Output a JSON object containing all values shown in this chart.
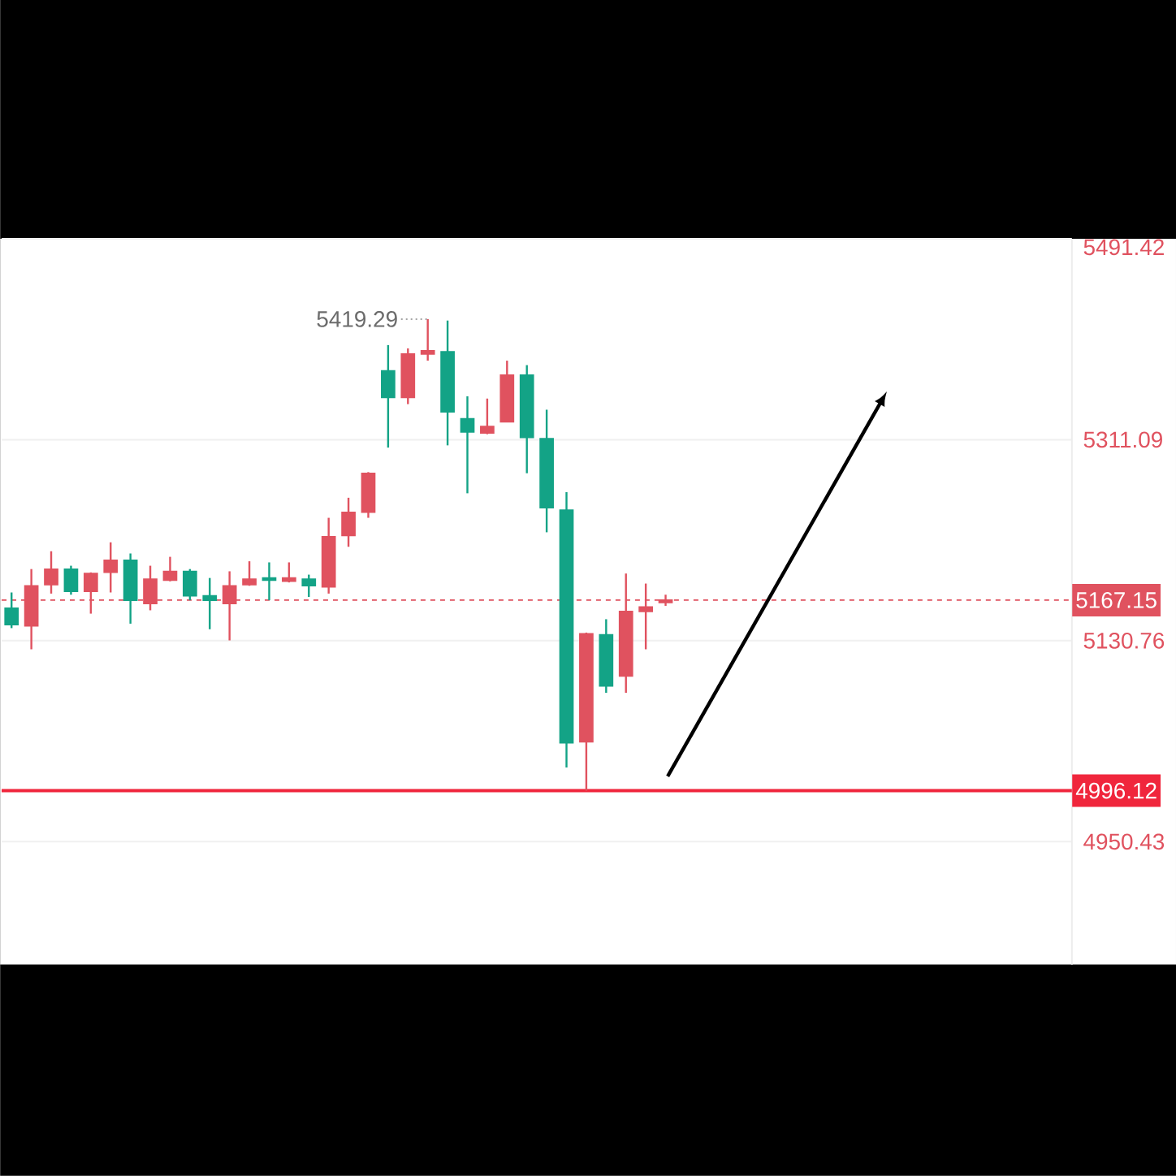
{
  "chart_data": {
    "type": "candlestick",
    "categories": [
      null,
      null,
      null,
      null,
      null,
      null,
      null,
      null,
      null,
      null,
      null,
      null,
      null,
      null,
      null,
      null,
      null,
      null,
      null,
      null,
      null,
      null,
      null,
      null,
      null,
      null,
      null,
      null,
      null,
      null,
      null,
      null,
      null,
      null,
      null,
      null,
      null,
      null,
      null,
      null,
      null,
      null,
      null,
      null,
      null,
      null,
      null,
      null,
      null,
      null,
      null,
      null,
      null,
      null
    ],
    "ohlc": [
      [
        5160,
        5174,
        5142,
        5145
      ],
      [
        5144,
        5195,
        5123,
        5180
      ],
      [
        5181,
        5211,
        5173,
        5195
      ],
      [
        5195,
        5198,
        5172,
        5175
      ],
      [
        5175,
        5192,
        5155,
        5191
      ],
      [
        5192,
        5219,
        5174,
        5203
      ],
      [
        5203,
        5209,
        5146,
        5167
      ],
      [
        5164,
        5198,
        5158,
        5186
      ],
      [
        5185,
        5206,
        5184,
        5193
      ],
      [
        5193,
        5195,
        5167,
        5171
      ],
      [
        5171,
        5187,
        5141,
        5167
      ],
      [
        5164,
        5193,
        5131,
        5180
      ],
      [
        5181,
        5202,
        5180,
        5186
      ],
      [
        5187,
        5201,
        5167,
        5185
      ],
      [
        5184,
        5201,
        5183,
        5187
      ],
      [
        5186,
        5190,
        5170,
        5180
      ],
      [
        5179,
        5241,
        5173,
        5224
      ],
      [
        5225,
        5259,
        5215,
        5246
      ],
      [
        5246,
        5282,
        5241,
        5281
      ],
      [
        5373,
        5396,
        5304,
        5349
      ],
      [
        5349,
        5393,
        5343,
        5388
      ],
      [
        5388,
        5419.29,
        5382,
        5391
      ],
      [
        5390,
        5418,
        5306,
        5336
      ],
      [
        5330,
        5350,
        5263,
        5318
      ],
      [
        5317,
        5348,
        5316,
        5323
      ],
      [
        5327,
        5382,
        5327,
        5369
      ],
      [
        5369,
        5378,
        5281,
        5313
      ],
      [
        5312,
        5338,
        5228,
        5250
      ],
      [
        5248,
        5264,
        5017,
        5039
      ],
      [
        5040,
        5138,
        4996.12,
        5137
      ],
      [
        5136,
        5150,
        5084,
        5090
      ],
      [
        5099,
        5191,
        5084,
        5157
      ],
      [
        5157,
        5182,
        5123,
        5161
      ],
      [
        5165,
        5172,
        5162,
        5167.15
      ],
      null,
      null,
      null,
      null,
      null,
      null,
      null,
      null,
      null,
      null,
      null,
      null,
      null,
      null,
      null,
      null,
      null,
      null,
      null,
      null
    ],
    "colors": [
      "#13a386",
      "#e0525f",
      "#e0525f",
      "#13a386",
      "#e0525f",
      "#e0525f",
      "#13a386",
      "#e0525f",
      "#e0525f",
      "#13a386",
      "#13a386",
      "#e0525f",
      "#e0525f",
      "#13a386",
      "#e0525f",
      "#13a386",
      "#e0525f",
      "#e0525f",
      "#e0525f",
      "#13a386",
      "#e0525f",
      "#e0525f",
      "#13a386",
      "#13a386",
      "#e0525f",
      "#e0525f",
      "#13a386",
      "#13a386",
      "#13a386",
      "#e0525f",
      "#13a386",
      "#e0525f",
      "#e0525f",
      "#e0525f",
      null,
      null,
      null,
      null,
      null,
      null,
      null,
      null,
      null,
      null,
      null,
      null,
      null,
      null,
      null,
      null,
      null,
      null,
      null,
      null
    ],
    "ylim": [
      4840,
      5491.42
    ],
    "yticks": [
      {
        "value": 5491.42,
        "label": "5491.42"
      },
      {
        "value": 5311.09,
        "label": "5311.09"
      },
      {
        "value": 5130.76,
        "label": "5130.76"
      },
      {
        "value": 4950.43,
        "label": "4950.43"
      }
    ],
    "grid": "y",
    "ref_lines": [
      {
        "axis": "y",
        "value": 5167.15,
        "label": "5167.15",
        "color": "#e0525f",
        "line_style": "dashed"
      },
      {
        "axis": "y",
        "value": 4996.12,
        "label": "4996.12",
        "color": "#f0263c",
        "line_style": "solid"
      }
    ],
    "annotations": [
      "5419.29"
    ]
  }
}
